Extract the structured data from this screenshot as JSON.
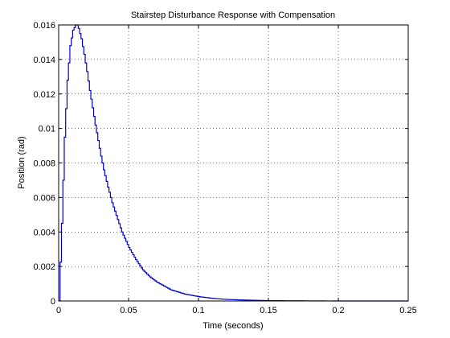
{
  "chart_data": {
    "type": "line",
    "title": "Stairstep Disturbance Response with Compensation",
    "xlabel": "Time (seconds)",
    "ylabel": "Position (rad)",
    "xlim": [
      0,
      0.25
    ],
    "ylim": [
      0,
      0.016
    ],
    "xticks": [
      0,
      0.05,
      0.1,
      0.15,
      0.2,
      0.25
    ],
    "xtick_labels": [
      "0",
      "0.05",
      "0.1",
      "0.15",
      "0.2",
      "0.25"
    ],
    "yticks": [
      0,
      0.002,
      0.004,
      0.006,
      0.008,
      0.01,
      0.012,
      0.014,
      0.016
    ],
    "ytick_labels": [
      "0",
      "0.002",
      "0.004",
      "0.006",
      "0.008",
      "0.01",
      "0.012",
      "0.014",
      "0.016"
    ],
    "grid": true,
    "step": true,
    "series": [
      {
        "color": "#0000cc",
        "x": [
          0,
          0.002,
          0.004,
          0.006,
          0.008,
          0.01,
          0.012,
          0.013,
          0.014,
          0.016,
          0.018,
          0.02,
          0.022,
          0.024,
          0.026,
          0.028,
          0.03,
          0.032,
          0.035,
          0.038,
          0.04,
          0.045,
          0.05,
          0.055,
          0.06,
          0.065,
          0.07,
          0.08,
          0.09,
          0.1,
          0.11,
          0.12,
          0.13,
          0.14,
          0.15,
          0.175,
          0.2,
          0.225,
          0.25
        ],
        "values": [
          0,
          0.0045,
          0.0095,
          0.0128,
          0.0148,
          0.0157,
          0.016,
          0.016,
          0.0158,
          0.0152,
          0.0143,
          0.0133,
          0.0122,
          0.0112,
          0.0102,
          0.0093,
          0.0084,
          0.0076,
          0.0066,
          0.0057,
          0.0052,
          0.004,
          0.0031,
          0.0024,
          0.0018,
          0.0014,
          0.0011,
          0.00065,
          0.0004,
          0.00025,
          0.00015,
          9e-05,
          6e-05,
          4e-05,
          2e-05,
          1e-05,
          0.0,
          0.0,
          0.0
        ]
      }
    ]
  }
}
